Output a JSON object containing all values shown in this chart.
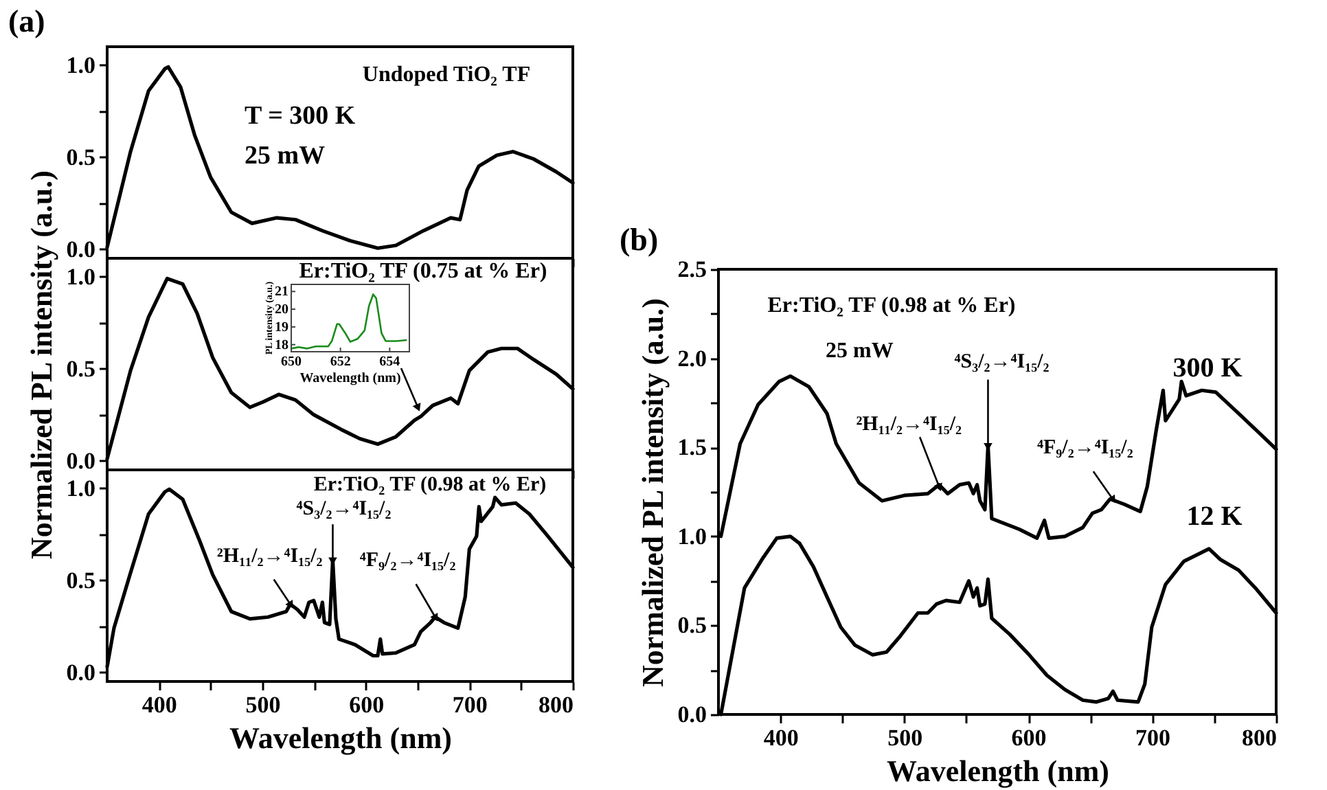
{
  "chart_data": [
    {
      "type": "line",
      "ylabel": null,
      "xlim": [
        350,
        800
      ],
      "ylim": [
        -0.05,
        1.1
      ],
      "tick_labels": "y",
      "xticks": [
        400,
        {
          "value": 450,
          "label": null
        },
        500,
        {
          "value": 550,
          "label": null
        },
        600,
        {
          "value": 650,
          "label": null
        },
        700,
        {
          "value": 750,
          "label": null
        },
        800
      ],
      "yticks": [
        {
          "value": 0,
          "label": "0.0"
        },
        {
          "value": 0.25,
          "label": null
        },
        {
          "value": 0.5,
          "label": "0.5"
        },
        {
          "value": 0.75,
          "label": null
        },
        {
          "value": 1,
          "label": "1.0"
        }
      ],
      "annotations": [
        "(a)",
        "Undoped TiO₂ TF",
        "T = 300 K",
        "25 mW"
      ],
      "series": [
        {
          "color": "#000000",
          "x": [
            350,
            372.6,
            390,
            405.8,
            409,
            421,
            434.5,
            450,
            470,
            490,
            514,
            532,
            558,
            585,
            611.5,
            629,
            655.7,
            682,
            691,
            697.8,
            709,
            726.6,
            742,
            762,
            784,
            800
          ],
          "values": [
            0.01,
            0.53,
            0.86,
            0.98,
            0.99,
            0.88,
            0.62,
            0.39,
            0.2,
            0.14,
            0.17,
            0.16,
            0.1,
            0.045,
            0.005,
            0.02,
            0.1,
            0.17,
            0.16,
            0.32,
            0.45,
            0.51,
            0.53,
            0.49,
            0.42,
            0.36
          ]
        }
      ]
    },
    {
      "type": "line",
      "ylabel": "Normalized PL intensity (a.u.)",
      "xlim": [
        350,
        800
      ],
      "ylim": [
        -0.05,
        1.1
      ],
      "tick_labels": "y",
      "xticks": [
        400,
        {
          "value": 450,
          "label": null
        },
        500,
        {
          "value": 550,
          "label": null
        },
        600,
        {
          "value": 650,
          "label": null
        },
        700,
        {
          "value": 750,
          "label": null
        },
        800
      ],
      "yticks": [
        {
          "value": 0,
          "label": "0.0"
        },
        {
          "value": 0.25,
          "label": null
        },
        {
          "value": 0.5,
          "label": "0.5"
        },
        {
          "value": 0.75,
          "label": null
        },
        {
          "value": 1,
          "label": "1.0"
        }
      ],
      "annotations": [
        "Er:TiO₂ TF (0.75 at % Er)"
      ],
      "series": [
        {
          "color": "#000000",
          "x": [
            350,
            372.6,
            390,
            408,
            423,
            437,
            452,
            470,
            488,
            501,
            516,
            532,
            549.6,
            576,
            594,
            611.5,
            629,
            647,
            653,
            664.6,
            682,
            689,
            700,
            717.7,
            731,
            746.5,
            762,
            784,
            800
          ],
          "values": [
            0.01,
            0.49,
            0.78,
            0.99,
            0.96,
            0.8,
            0.56,
            0.37,
            0.29,
            0.32,
            0.36,
            0.33,
            0.25,
            0.17,
            0.12,
            0.09,
            0.13,
            0.22,
            0.24,
            0.3,
            0.34,
            0.31,
            0.49,
            0.59,
            0.61,
            0.61,
            0.55,
            0.47,
            0.39
          ]
        }
      ]
    },
    {
      "type": "line",
      "xlabel": "Wavelength (nm)",
      "ylabel": "PL intensity (a.u.)",
      "xlim": [
        650,
        654.8
      ],
      "ylim": [
        17.6,
        21.4
      ],
      "xticks": [
        650,
        652,
        654
      ],
      "yticks": [
        18,
        19,
        20,
        21
      ],
      "series": [
        {
          "color": "#1a8c1a",
          "x": [
            650,
            650.3,
            650.65,
            651,
            651.5,
            651.65,
            651.86,
            651.95,
            652.2,
            652.4,
            652.7,
            652.98,
            653.16,
            653.33,
            653.45,
            653.67,
            653.84,
            654.28,
            654.7
          ],
          "values": [
            17.78,
            17.86,
            17.78,
            17.9,
            17.9,
            18.2,
            19.16,
            19.16,
            18.64,
            18.16,
            18.33,
            18.8,
            20.19,
            20.84,
            20.62,
            18.64,
            18.2,
            18.2,
            18.26
          ]
        }
      ]
    },
    {
      "type": "line",
      "xlabel": "Wavelength (nm)",
      "xlim": [
        350,
        800
      ],
      "ylim": [
        -0.05,
        1.1
      ],
      "xticks": [
        400,
        {
          "value": 450,
          "label": null
        },
        500,
        {
          "value": 550,
          "label": null
        },
        600,
        {
          "value": 650,
          "label": null
        },
        700,
        {
          "value": 750,
          "label": null
        },
        800
      ],
      "yticks": [
        {
          "value": 0,
          "label": "0.0"
        },
        {
          "value": 0.25,
          "label": null
        },
        {
          "value": 0.5,
          "label": "0.5"
        },
        {
          "value": 0.75,
          "label": null
        },
        {
          "value": 1,
          "label": "1.0"
        }
      ],
      "annotations": [
        "Er:TiO₂ TF (0.98 at % Er)",
        {
          "text": "²H₁₁/₂→⁴I₁₅/₂",
          "x": 527,
          "y": 0.37
        },
        {
          "text": "⁴S₃/₂→⁴I₁₅/₂",
          "x": 568,
          "y": 0.61
        },
        {
          "text": "⁴F₉/₂→⁴I₁₅/₂",
          "x": 667,
          "y": 0.3
        }
      ],
      "series": [
        {
          "color": "#000000",
          "x": [
            350,
            356.6,
            372,
            390,
            405.7,
            410,
            423,
            439,
            452,
            470,
            488,
            505.5,
            523,
            527,
            534,
            540.5,
            545,
            549.6,
            555,
            558,
            560,
            565,
            568,
            571,
            574,
            589.6,
            607,
            611.5,
            614,
            616,
            629,
            647,
            653,
            662.5,
            667,
            675.5,
            689,
            696,
            700,
            707,
            709.3,
            711.5,
            722.6,
            724.8,
            731,
            744.8,
            758,
            775.8,
            800
          ],
          "values": [
            0.03,
            0.24,
            0.53,
            0.86,
            0.98,
            0.995,
            0.94,
            0.72,
            0.53,
            0.33,
            0.29,
            0.3,
            0.33,
            0.37,
            0.34,
            0.3,
            0.38,
            0.39,
            0.3,
            0.38,
            0.27,
            0.26,
            0.61,
            0.29,
            0.18,
            0.15,
            0.09,
            0.09,
            0.18,
            0.1,
            0.105,
            0.15,
            0.22,
            0.27,
            0.3,
            0.27,
            0.24,
            0.41,
            0.67,
            0.74,
            0.9,
            0.82,
            0.9,
            0.95,
            0.91,
            0.92,
            0.86,
            0.74,
            0.57
          ]
        }
      ]
    },
    {
      "type": "line",
      "xlabel": "Wavelength (nm)",
      "ylabel": "Normalized PL intensity (a.u.)",
      "xlim": [
        350,
        800
      ],
      "ylim": [
        0,
        2.5
      ],
      "xticks": [
        400,
        {
          "value": 450,
          "label": null
        },
        500,
        {
          "value": 550,
          "label": null
        },
        600,
        {
          "value": 650,
          "label": null
        },
        700,
        {
          "value": 750,
          "label": null
        },
        800
      ],
      "yticks": [
        {
          "value": 0,
          "label": "0.0"
        },
        {
          "value": 0.25,
          "label": null
        },
        {
          "value": 0.5,
          "label": "0.5"
        },
        {
          "value": 0.75,
          "label": null
        },
        {
          "value": 1,
          "label": "1.0"
        },
        {
          "value": 1.25,
          "label": null
        },
        {
          "value": 1.5,
          "label": "1.5"
        },
        {
          "value": 1.75,
          "label": null
        },
        {
          "value": 2,
          "label": "2.0"
        },
        {
          "value": 2.25,
          "label": null
        },
        {
          "value": 2.5,
          "label": "2.5"
        }
      ],
      "annotations": [
        "(b)",
        "Er:TiO₂ TF (0.98 at % Er)",
        "25 mW",
        {
          "text": "²H₁₁/₂→⁴I₁₅/₂",
          "x": 528,
          "y": 1.28
        },
        {
          "text": "⁴S₃/₂→⁴I₁₅/₂",
          "x": 567.5,
          "y": 1.51
        },
        {
          "text": "⁴F₉/₂→⁴I₁₅/₂",
          "x": 668,
          "y": 1.21
        }
      ],
      "series": [
        {
          "name": "300 K",
          "color": "#000000",
          "x": [
            352,
            367.5,
            382,
            399,
            408,
            423,
            437.6,
            445,
            463.5,
            482,
            500,
            519,
            528,
            535,
            544.6,
            552,
            555.7,
            558.7,
            561,
            565,
            567.5,
            570.5,
            581.5,
            592.6,
            607,
            613,
            616.6,
            629.5,
            644,
            651.7,
            659,
            666,
            677.5,
            690.4,
            696,
            703.3,
            708.8,
            710.7,
            721.8,
            723.6,
            727.3,
            740,
            751.3,
            769.7,
            788,
            800
          ],
          "values": [
            1.0,
            1.52,
            1.74,
            1.87,
            1.9,
            1.84,
            1.69,
            1.52,
            1.3,
            1.2,
            1.23,
            1.24,
            1.29,
            1.24,
            1.29,
            1.3,
            1.24,
            1.29,
            1.2,
            1.15,
            1.51,
            1.1,
            1.07,
            1.04,
            0.99,
            1.09,
            0.99,
            1.0,
            1.05,
            1.13,
            1.15,
            1.21,
            1.18,
            1.14,
            1.28,
            1.6,
            1.82,
            1.65,
            1.77,
            1.87,
            1.79,
            1.82,
            1.81,
            1.69,
            1.57,
            1.49
          ]
        },
        {
          "name": "12 K",
          "color": "#000000",
          "x": [
            352,
            371,
            386,
            397,
            408,
            415.5,
            426.6,
            437.6,
            448.7,
            460,
            474.5,
            485.6,
            496.7,
            511,
            519,
            526,
            533.6,
            544.6,
            552,
            555.7,
            558.7,
            561,
            565,
            567.5,
            570.5,
            585,
            600,
            615,
            629.5,
            644,
            655,
            664.6,
            668.3,
            672,
            688.6,
            694,
            699.6,
            710.7,
            725.5,
            740,
            745.8,
            755,
            769.7,
            784.5,
            800
          ],
          "values": [
            0.0,
            0.71,
            0.88,
            0.99,
            1.0,
            0.96,
            0.83,
            0.66,
            0.49,
            0.39,
            0.335,
            0.35,
            0.44,
            0.57,
            0.57,
            0.62,
            0.64,
            0.63,
            0.75,
            0.66,
            0.71,
            0.61,
            0.62,
            0.76,
            0.54,
            0.45,
            0.34,
            0.22,
            0.14,
            0.08,
            0.07,
            0.09,
            0.13,
            0.08,
            0.07,
            0.17,
            0.49,
            0.73,
            0.86,
            0.91,
            0.93,
            0.87,
            0.81,
            0.7,
            0.57
          ]
        }
      ]
    }
  ]
}
